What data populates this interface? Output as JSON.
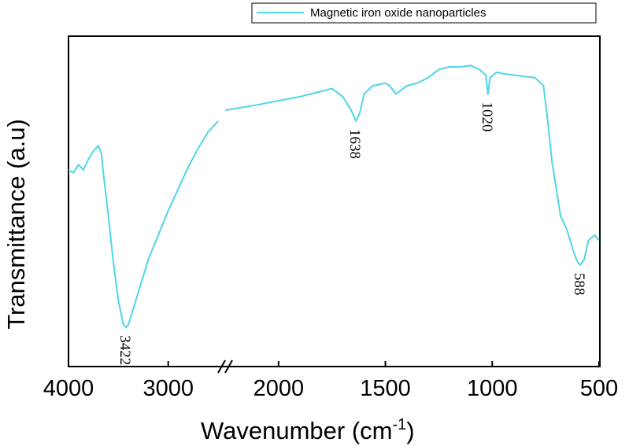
{
  "chart_data": {
    "type": "line",
    "xlabel": "Wavenumber (cm",
    "xlabel_sup": "-1",
    "xlabel_close": ")",
    "ylabel": "Transmittance (a.u)",
    "x_axis": "reversed, broken between 2500 and 2250",
    "grid": false,
    "legend_position": "top-right",
    "x_ticks": [
      {
        "value": 4000,
        "label": "4000"
      },
      {
        "value": 3000,
        "label": "3000"
      },
      {
        "value": 2000,
        "label": "2000"
      },
      {
        "value": 1500,
        "label": "1500"
      },
      {
        "value": 1000,
        "label": "1000"
      },
      {
        "value": 500,
        "label": "500"
      }
    ],
    "series": [
      {
        "name": "Magnetic iron oxide nanoparticles",
        "color": "#4dd6e8",
        "segments": [
          [
            [
              4000,
              0.62
            ],
            [
              3950,
              0.61
            ],
            [
              3900,
              0.64
            ],
            [
              3850,
              0.62
            ],
            [
              3800,
              0.66
            ],
            [
              3750,
              0.69
            ],
            [
              3700,
              0.71
            ],
            [
              3670,
              0.68
            ],
            [
              3650,
              0.61
            ],
            [
              3600,
              0.45
            ],
            [
              3550,
              0.28
            ],
            [
              3500,
              0.14
            ],
            [
              3450,
              0.05
            ],
            [
              3422,
              0.04
            ],
            [
              3400,
              0.05
            ],
            [
              3300,
              0.17
            ],
            [
              3200,
              0.29
            ],
            [
              3100,
              0.38
            ],
            [
              3000,
              0.47
            ],
            [
              2900,
              0.55
            ],
            [
              2800,
              0.63
            ],
            [
              2700,
              0.7
            ],
            [
              2600,
              0.76
            ],
            [
              2500,
              0.8
            ]
          ],
          [
            [
              2250,
              0.84
            ],
            [
              2100,
              0.86
            ],
            [
              2000,
              0.875
            ],
            [
              1900,
              0.89
            ],
            [
              1850,
              0.9
            ],
            [
              1800,
              0.91
            ],
            [
              1750,
              0.92
            ],
            [
              1700,
              0.89
            ],
            [
              1660,
              0.84
            ],
            [
              1638,
              0.8
            ],
            [
              1620,
              0.83
            ],
            [
              1600,
              0.9
            ],
            [
              1560,
              0.93
            ],
            [
              1500,
              0.94
            ],
            [
              1480,
              0.93
            ],
            [
              1450,
              0.9
            ],
            [
              1400,
              0.93
            ],
            [
              1350,
              0.94
            ],
            [
              1300,
              0.96
            ],
            [
              1250,
              0.99
            ],
            [
              1200,
              1.0
            ],
            [
              1150,
              1.0
            ],
            [
              1100,
              1.005
            ],
            [
              1060,
              0.99
            ],
            [
              1030,
              0.97
            ],
            [
              1020,
              0.9
            ],
            [
              1010,
              0.96
            ],
            [
              980,
              0.98
            ],
            [
              950,
              0.975
            ],
            [
              900,
              0.97
            ],
            [
              850,
              0.965
            ],
            [
              800,
              0.96
            ],
            [
              760,
              0.93
            ],
            [
              740,
              0.8
            ],
            [
              720,
              0.65
            ],
            [
              700,
              0.55
            ],
            [
              680,
              0.45
            ],
            [
              650,
              0.4
            ],
            [
              620,
              0.32
            ],
            [
              600,
              0.28
            ],
            [
              588,
              0.27
            ],
            [
              570,
              0.29
            ],
            [
              550,
              0.36
            ],
            [
              520,
              0.38
            ],
            [
              500,
              0.36
            ]
          ]
        ]
      }
    ],
    "annotations": [
      {
        "text": "3422",
        "x": 3422,
        "y": 0.04
      },
      {
        "text": "1638",
        "x": 1638,
        "y": 0.8
      },
      {
        "text": "1020",
        "x": 1020,
        "y": 0.9
      },
      {
        "text": "588",
        "x": 588,
        "y": 0.27
      }
    ]
  }
}
